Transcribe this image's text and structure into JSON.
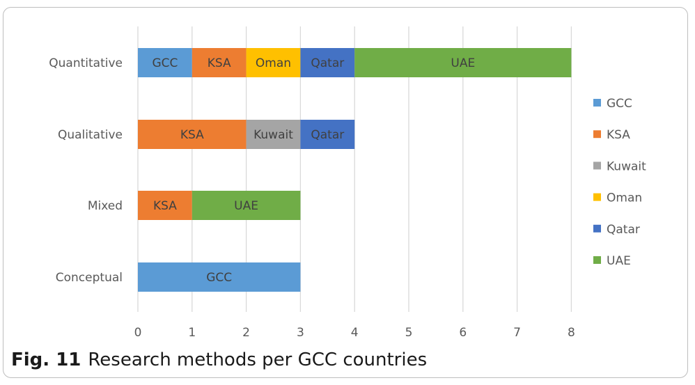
{
  "caption": {
    "number": "Fig. 11",
    "text": "Research methods per GCC countries"
  },
  "chart_data": {
    "type": "bar",
    "orientation": "horizontal",
    "stacked": true,
    "categories": [
      "Quantitative",
      "Qualitative",
      "Mixed",
      "Conceptual"
    ],
    "series": [
      {
        "name": "GCC",
        "color": "#5b9bd5",
        "values": [
          1,
          0,
          0,
          3
        ]
      },
      {
        "name": "KSA",
        "color": "#ed7d31",
        "values": [
          1,
          2,
          1,
          0
        ]
      },
      {
        "name": "Kuwait",
        "color": "#a5a5a5",
        "values": [
          0,
          1,
          0,
          0
        ]
      },
      {
        "name": "Oman",
        "color": "#ffc000",
        "values": [
          1,
          0,
          0,
          0
        ]
      },
      {
        "name": "Qatar",
        "color": "#4472c4",
        "values": [
          1,
          1,
          0,
          0
        ]
      },
      {
        "name": "UAE",
        "color": "#70ad47",
        "values": [
          4,
          0,
          2,
          0
        ]
      }
    ],
    "xticks": [
      "0",
      "1",
      "2",
      "3",
      "4",
      "5",
      "6",
      "7",
      "8"
    ],
    "xlim": [
      0,
      8
    ],
    "grid": "vertical",
    "legend_position": "right",
    "data_labels": "series name"
  }
}
